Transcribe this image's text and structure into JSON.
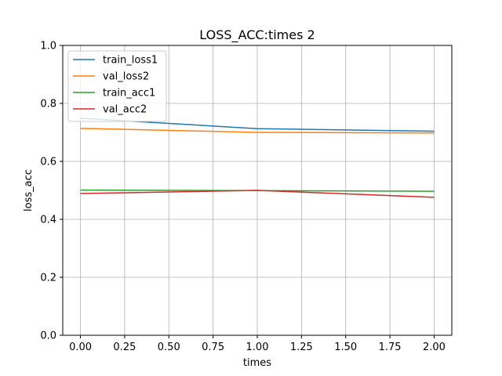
{
  "chart_data": {
    "type": "line",
    "title": "LOSS_ACC:times 2",
    "xlabel": "times",
    "ylabel": "loss_acc",
    "xlim": [
      -0.1,
      2.1
    ],
    "ylim": [
      0.0,
      1.0
    ],
    "x_ticks": [
      "0.00",
      "0.25",
      "0.50",
      "0.75",
      "1.00",
      "1.25",
      "1.50",
      "1.75",
      "2.00"
    ],
    "y_ticks": [
      "0.0",
      "0.2",
      "0.4",
      "0.6",
      "0.8",
      "1.0"
    ],
    "grid": true,
    "legend_position": "top-left",
    "x": [
      0,
      1,
      2
    ],
    "series": [
      {
        "name": "train_loss1",
        "color": "#1f77b4",
        "values": [
          0.749,
          0.713,
          0.704
        ]
      },
      {
        "name": "val_loss2",
        "color": "#ff7f0e",
        "values": [
          0.714,
          0.7,
          0.698
        ]
      },
      {
        "name": "train_acc1",
        "color": "#2ca02c",
        "values": [
          0.501,
          0.499,
          0.497
        ]
      },
      {
        "name": "val_acc2",
        "color": "#d62728",
        "values": [
          0.489,
          0.5,
          0.476
        ]
      }
    ]
  }
}
